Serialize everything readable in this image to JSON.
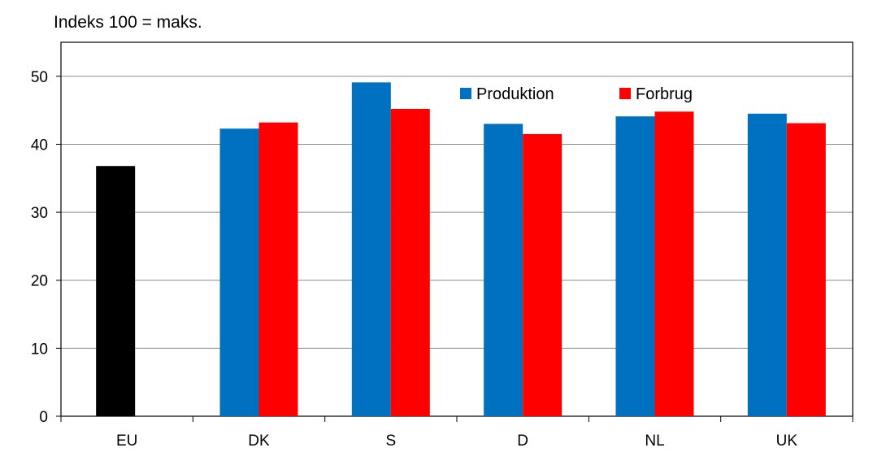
{
  "chart_data": {
    "type": "bar",
    "title": "Indeks 100 = maks.",
    "categories": [
      "EU",
      "DK",
      "S",
      "D",
      "NL",
      "UK"
    ],
    "ylim": [
      0,
      55
    ],
    "yticks": [
      0,
      10,
      20,
      30,
      40,
      50
    ],
    "grid": true,
    "legend_position": "top-right",
    "eu_bar": {
      "value": 36.8,
      "color": "#000000"
    },
    "series": [
      {
        "name": "Produktion",
        "color": "#0070C0",
        "values": [
          null,
          42.3,
          49.1,
          43.0,
          44.1,
          44.5
        ]
      },
      {
        "name": "Forbrug",
        "color": "#FF0000",
        "values": [
          null,
          43.2,
          45.2,
          41.5,
          44.8,
          43.1
        ]
      }
    ]
  }
}
